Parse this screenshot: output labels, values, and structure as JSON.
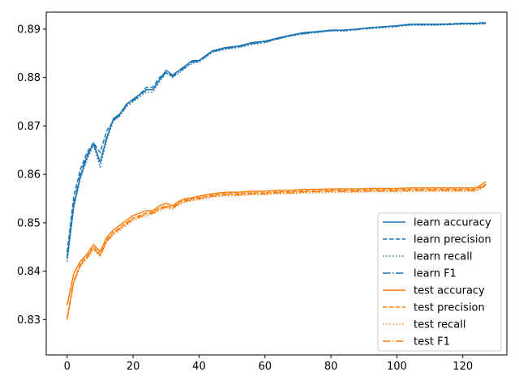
{
  "chart_data": {
    "type": "line",
    "title": "",
    "xlabel": "",
    "ylabel": "",
    "xlim": [
      -6.35,
      133.35
    ],
    "ylim": [
      0.8227,
      0.8935
    ],
    "xticks": [
      0,
      20,
      40,
      60,
      80,
      100,
      120
    ],
    "yticks": [
      0.83,
      0.84,
      0.85,
      0.86,
      0.87,
      0.88,
      0.89
    ],
    "ytick_labels": [
      "0.83",
      "0.84",
      "0.85",
      "0.86",
      "0.87",
      "0.88",
      "0.89"
    ],
    "grid": false,
    "legend_position": "lower-right",
    "x": [
      0,
      2,
      4,
      6,
      8,
      10,
      12,
      14,
      16,
      18,
      20,
      22,
      24,
      26,
      28,
      30,
      32,
      34,
      36,
      38,
      40,
      44,
      48,
      52,
      56,
      60,
      64,
      68,
      72,
      76,
      80,
      84,
      88,
      92,
      96,
      100,
      104,
      108,
      112,
      116,
      120,
      124,
      127
    ],
    "series": [
      {
        "name": "learn accuracy",
        "color": "#1f77b4",
        "dash": "solid",
        "values": [
          0.8425,
          0.8535,
          0.8595,
          0.8635,
          0.8665,
          0.8625,
          0.8675,
          0.8715,
          0.8725,
          0.8745,
          0.8755,
          0.8765,
          0.8775,
          0.8775,
          0.8795,
          0.8815,
          0.8805,
          0.8815,
          0.8825,
          0.8835,
          0.8835,
          0.8855,
          0.8862,
          0.8865,
          0.8872,
          0.8875,
          0.8882,
          0.8888,
          0.8893,
          0.8895,
          0.8898,
          0.8898,
          0.89,
          0.8903,
          0.8905,
          0.8907,
          0.891,
          0.891,
          0.891,
          0.891,
          0.8912,
          0.8912,
          0.8913
        ]
      },
      {
        "name": "learn precision",
        "color": "#1f77b4",
        "dash": "dashed",
        "values": [
          0.844,
          0.8555,
          0.861,
          0.8645,
          0.8665,
          0.8645,
          0.869,
          0.871,
          0.8725,
          0.8745,
          0.8755,
          0.8765,
          0.878,
          0.878,
          0.88,
          0.881,
          0.8805,
          0.8815,
          0.8825,
          0.8835,
          0.8835,
          0.8855,
          0.886,
          0.8865,
          0.887,
          0.8875,
          0.888,
          0.8887,
          0.8892,
          0.8894,
          0.8897,
          0.8898,
          0.89,
          0.8903,
          0.8905,
          0.8907,
          0.891,
          0.891,
          0.891,
          0.8911,
          0.8912,
          0.8912,
          0.8914
        ]
      },
      {
        "name": "learn recall",
        "color": "#1f77b4",
        "dash": "dotted",
        "values": [
          0.842,
          0.853,
          0.859,
          0.863,
          0.866,
          0.8615,
          0.867,
          0.871,
          0.872,
          0.874,
          0.875,
          0.876,
          0.877,
          0.877,
          0.879,
          0.881,
          0.88,
          0.881,
          0.882,
          0.883,
          0.8832,
          0.8852,
          0.8858,
          0.8862,
          0.8868,
          0.8872,
          0.888,
          0.8886,
          0.889,
          0.8893,
          0.8896,
          0.8896,
          0.8899,
          0.8901,
          0.8903,
          0.8905,
          0.8908,
          0.8908,
          0.8908,
          0.8909,
          0.891,
          0.891,
          0.8911
        ]
      },
      {
        "name": "learn F1",
        "color": "#1f77b4",
        "dash": "dashdot",
        "values": [
          0.843,
          0.854,
          0.86,
          0.864,
          0.8662,
          0.8625,
          0.8678,
          0.8712,
          0.8722,
          0.8742,
          0.8752,
          0.8762,
          0.8775,
          0.8775,
          0.8795,
          0.881,
          0.8802,
          0.8812,
          0.8822,
          0.8832,
          0.8833,
          0.8853,
          0.886,
          0.8863,
          0.887,
          0.8873,
          0.888,
          0.8887,
          0.8891,
          0.8894,
          0.8897,
          0.8897,
          0.8899,
          0.8902,
          0.8904,
          0.8906,
          0.8909,
          0.8909,
          0.8909,
          0.891,
          0.8911,
          0.8911,
          0.8912
        ]
      },
      {
        "name": "test accuracy",
        "color": "#ff7f0e",
        "dash": "solid",
        "values": [
          0.833,
          0.8395,
          0.842,
          0.8435,
          0.8455,
          0.844,
          0.847,
          0.8485,
          0.8495,
          0.8505,
          0.8515,
          0.852,
          0.8525,
          0.8525,
          0.8535,
          0.854,
          0.8535,
          0.8545,
          0.855,
          0.8552,
          0.8555,
          0.856,
          0.8563,
          0.8563,
          0.8565,
          0.8565,
          0.8567,
          0.8567,
          0.8569,
          0.8569,
          0.857,
          0.857,
          0.857,
          0.8571,
          0.8571,
          0.8571,
          0.8572,
          0.8572,
          0.8572,
          0.8572,
          0.8572,
          0.8572,
          0.8585
        ]
      },
      {
        "name": "test precision",
        "color": "#ff7f0e",
        "dash": "dashed",
        "values": [
          0.8305,
          0.838,
          0.8415,
          0.843,
          0.845,
          0.8435,
          0.8465,
          0.848,
          0.849,
          0.85,
          0.851,
          0.8515,
          0.852,
          0.8522,
          0.853,
          0.8535,
          0.8532,
          0.8542,
          0.8547,
          0.855,
          0.8552,
          0.8557,
          0.856,
          0.856,
          0.8562,
          0.8562,
          0.8564,
          0.8564,
          0.8566,
          0.8566,
          0.8567,
          0.8567,
          0.8567,
          0.8568,
          0.8568,
          0.8568,
          0.8569,
          0.8569,
          0.8569,
          0.8569,
          0.8569,
          0.8569,
          0.858
        ]
      },
      {
        "name": "test recall",
        "color": "#ff7f0e",
        "dash": "dotted",
        "values": [
          0.83,
          0.8375,
          0.841,
          0.8425,
          0.8445,
          0.843,
          0.846,
          0.8475,
          0.8485,
          0.8495,
          0.8505,
          0.851,
          0.8515,
          0.8518,
          0.8526,
          0.8531,
          0.8528,
          0.8538,
          0.8543,
          0.8546,
          0.8548,
          0.8553,
          0.8556,
          0.8556,
          0.8558,
          0.8558,
          0.856,
          0.856,
          0.8562,
          0.8562,
          0.8563,
          0.8563,
          0.8563,
          0.8564,
          0.8564,
          0.8564,
          0.8565,
          0.8565,
          0.8565,
          0.8565,
          0.8565,
          0.8565,
          0.8576
        ]
      },
      {
        "name": "test F1",
        "color": "#ff7f0e",
        "dash": "dashdot",
        "values": [
          0.8302,
          0.8378,
          0.8412,
          0.8428,
          0.8448,
          0.8432,
          0.8462,
          0.8478,
          0.8488,
          0.8498,
          0.8508,
          0.8512,
          0.8518,
          0.852,
          0.8528,
          0.8533,
          0.853,
          0.854,
          0.8545,
          0.8548,
          0.855,
          0.8555,
          0.8558,
          0.8558,
          0.856,
          0.856,
          0.8562,
          0.8562,
          0.8564,
          0.8564,
          0.8565,
          0.8565,
          0.8565,
          0.8566,
          0.8566,
          0.8566,
          0.8567,
          0.8567,
          0.8567,
          0.8567,
          0.8567,
          0.8567,
          0.8578
        ]
      }
    ]
  }
}
